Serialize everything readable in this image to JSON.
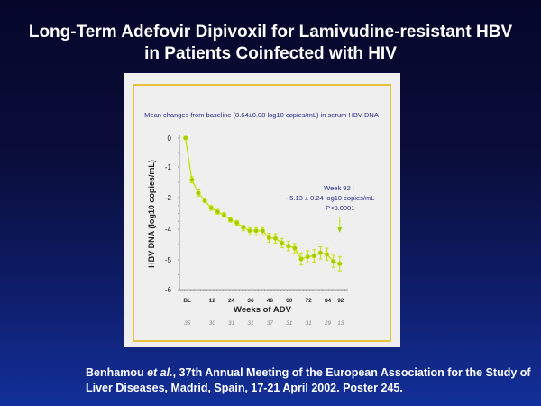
{
  "slide": {
    "title_line1": "Long-Term Adefovir Dipivoxil for Lamivudine-resistant HBV",
    "title_line2": "in Patients Coinfected with HIV",
    "citation_author": "Benhamou",
    "citation_etal": " et al.",
    "citation_rest": ", 37th Annual Meeting of the European Association for the Study of Liver Diseases, Madrid, Spain, 17-21 April 2002. Poster 245."
  },
  "colors": {
    "line": "#c8e000",
    "marker": "#9ccc00",
    "text": "#2a2a8a",
    "frame": "#e8c23a"
  },
  "chart_data": {
    "type": "line",
    "title": "Mean changes from baseline (8.64±0.08 log10 copies/mL) in serum HBV DNA",
    "xlabel": "Weeks of ADV",
    "ylabel": "HBV DNA (log10 copies/mL)",
    "ylim": [
      -6,
      0
    ],
    "y_ticks": [
      "0",
      "-1",
      "-2",
      "-4",
      "-5",
      "-6"
    ],
    "y_tick_values": [
      0,
      -1,
      -2,
      -4,
      -5,
      -6
    ],
    "x_tick_labels": [
      "BL",
      "12",
      "24",
      "36",
      "48",
      "60",
      "72",
      "84",
      "92"
    ],
    "x_tick_weeks": [
      0,
      12,
      24,
      36,
      48,
      60,
      72,
      84,
      92
    ],
    "n_patients": [
      "35",
      "30",
      "31",
      "31",
      "37",
      "31",
      "31",
      "29",
      "13"
    ],
    "grid": false,
    "series": [
      {
        "weeks": [
          0,
          2,
          4,
          8,
          12,
          16,
          20,
          24,
          28,
          32,
          36,
          40,
          44,
          48,
          52,
          56,
          60,
          64,
          68,
          72,
          76,
          80,
          84,
          88,
          92
        ],
        "values": [
          0,
          -1.42,
          -1.85,
          -2.2,
          -2.65,
          -2.9,
          -3.1,
          -3.4,
          -3.6,
          -3.9,
          -4.05,
          -4.05,
          -4.05,
          -4.28,
          -4.3,
          -4.45,
          -4.55,
          -4.62,
          -4.97,
          -4.9,
          -4.87,
          -4.77,
          -4.82,
          -5.05,
          -5.13
        ],
        "error": [
          0,
          0.1,
          0.1,
          0.1,
          0.15,
          0.15,
          0.15,
          0.15,
          0.15,
          0.15,
          0.15,
          0.15,
          0.15,
          0.15,
          0.15,
          0.15,
          0.15,
          0.15,
          0.2,
          0.2,
          0.2,
          0.2,
          0.2,
          0.2,
          0.24
        ]
      }
    ],
    "annotation": {
      "line1": "Week 92 :",
      "line2": "- 5.13 ± 0.24 log10 copies/mL",
      "line3": "-P<0.0001"
    }
  }
}
